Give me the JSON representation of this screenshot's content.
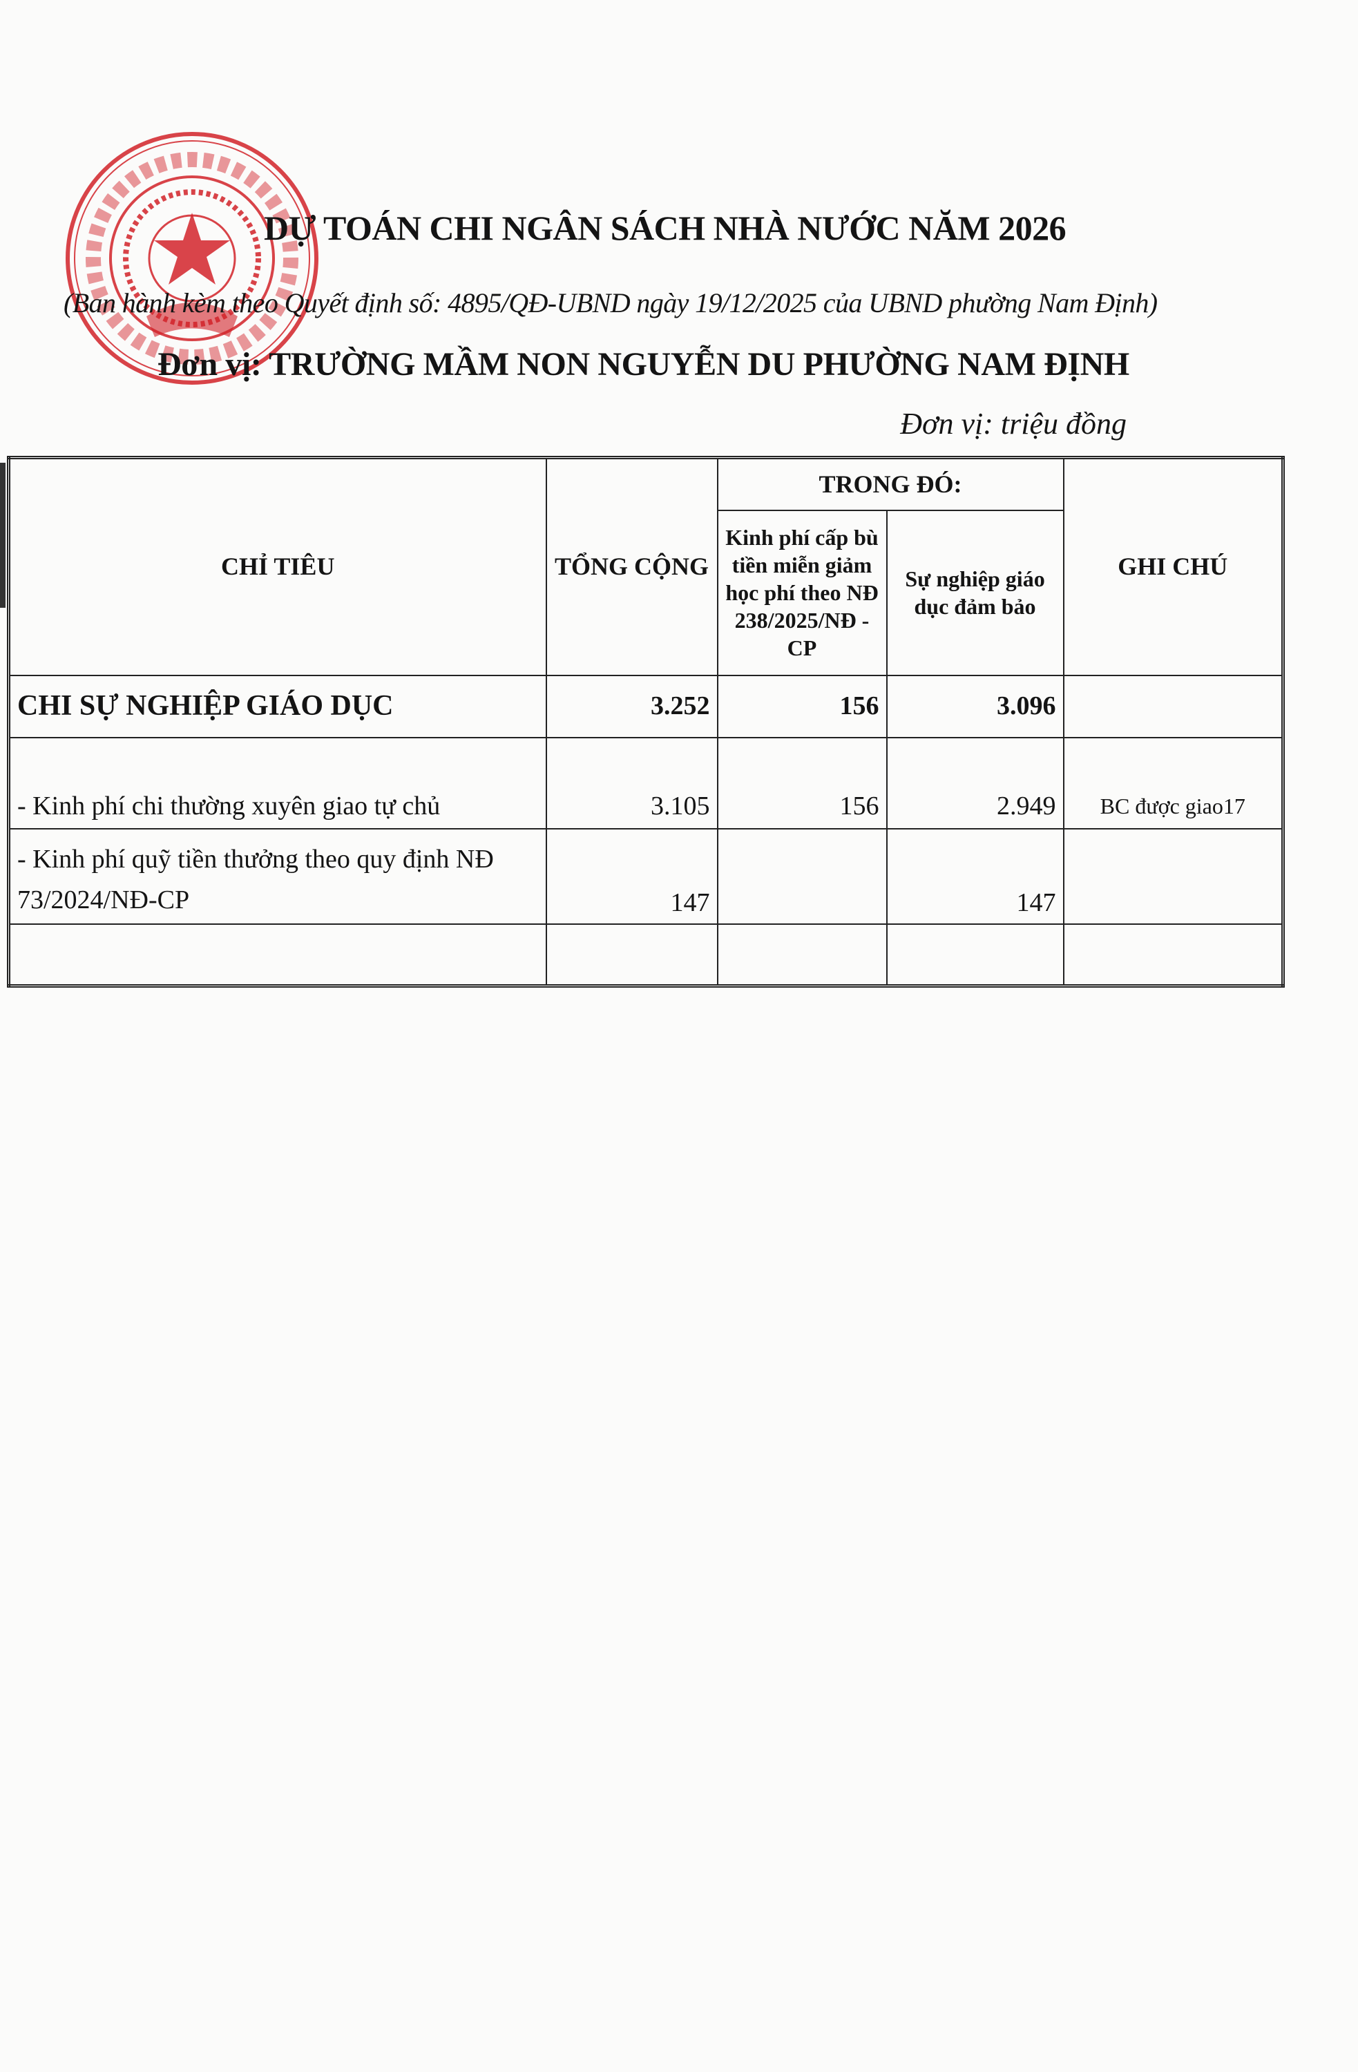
{
  "stamp": {
    "text": "PHƯỜNG NAM ĐỊNH - NINH BÌNH - U.B.N.D",
    "color": "#d2232a"
  },
  "header": {
    "title": "DỰ TOÁN CHI NGÂN SÁCH NHÀ NƯỚC NĂM 2026",
    "subtitle": "(Ban hành kèm theo Quyết định số: 4895/QĐ-UBND ngày 19/12/2025 của UBND phường Nam Định)",
    "unit": "Đơn vị: TRƯỜNG MẦM NON NGUYỄN DU PHƯỜNG NAM ĐỊNH",
    "currency": "Đơn vị: triệu đồng"
  },
  "table": {
    "headers": {
      "chi_tieu": "CHỈ TIÊU",
      "tong_cong": "TỔNG CỘNG",
      "trong_do": "TRONG ĐÓ:",
      "kinh_phi_cap_bu": "Kinh phí cấp bù tiền miễn giảm học phí theo NĐ 238/2025/NĐ - CP",
      "su_nghiep": "Sự nghiệp giáo dục đảm bảo",
      "ghi_chu": "GHI CHÚ"
    },
    "rows": [
      {
        "chi_tieu": "CHI SỰ NGHIỆP GIÁO DỤC",
        "tong_cong": "3.252",
        "cap_bu": "156",
        "su_nghiep": "3.096",
        "ghi_chu": ""
      },
      {
        "chi_tieu": "- Kinh phí chi thường xuyên giao tự chủ",
        "tong_cong": "3.105",
        "cap_bu": "156",
        "su_nghiep": "2.949",
        "ghi_chu": "BC được giao17"
      },
      {
        "chi_tieu": "- Kinh phí quỹ tiền thưởng theo quy định NĐ 73/2024/NĐ-CP",
        "tong_cong": "147",
        "cap_bu": "",
        "su_nghiep": "147",
        "ghi_chu": ""
      },
      {
        "chi_tieu": "",
        "tong_cong": "",
        "cap_bu": "",
        "su_nghiep": "",
        "ghi_chu": ""
      }
    ]
  }
}
